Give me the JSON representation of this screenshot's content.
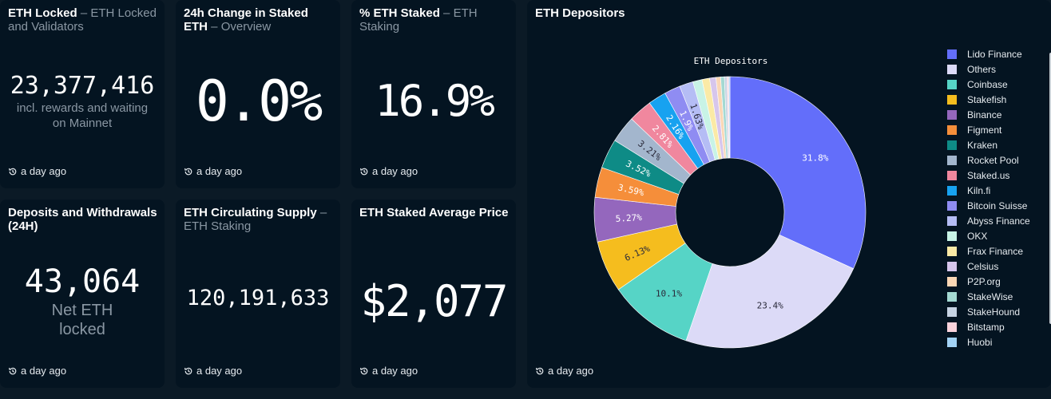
{
  "cards": {
    "eth_locked": {
      "title": "ETH Locked",
      "subtitle": "ETH Locked and Validators",
      "value": "23,377,416",
      "caption_line1": "incl. rewards and waiting",
      "caption_line2": "on Mainnet",
      "updated": "a day ago"
    },
    "change_24h": {
      "title": "24h Change in Staked ETH",
      "subtitle": "Overview",
      "value": "0.0%",
      "updated": "a day ago"
    },
    "pct_staked": {
      "title": "% ETH Staked",
      "subtitle": "ETH Staking",
      "value": "16.9%",
      "updated": "a day ago"
    },
    "deposits_withdrawals": {
      "title": "Deposits and Withdrawals (24H)",
      "value": "43,064",
      "caption_line1": "Net ETH",
      "caption_line2": "locked",
      "updated": "a day ago"
    },
    "circulating": {
      "title": "ETH Circulating Supply",
      "subtitle": "ETH Staking",
      "value": "120,191,633",
      "updated": "a day ago"
    },
    "avg_price": {
      "title": "ETH Staked Average Price",
      "value": "$2,077",
      "updated": "a day ago"
    },
    "depositors": {
      "title": "ETH Depositors",
      "updated": "a day ago"
    }
  },
  "separator": "–",
  "icons": {
    "updated": "history-clock-icon"
  },
  "chart_data": {
    "type": "pie",
    "title": "ETH Depositors",
    "hole": 0.4,
    "categories": [
      "Lido Finance",
      "Others",
      "Coinbase",
      "Stakefish",
      "Binance",
      "Figment",
      "Kraken",
      "Rocket Pool",
      "Staked.us",
      "Kiln.fi",
      "Bitcoin Suisse",
      "Abyss Finance",
      "OKX",
      "Frax Finance",
      "Celsius",
      "P2P.org",
      "StakeWise",
      "StakeHound",
      "Bitstamp",
      "Huobi"
    ],
    "values": [
      31.8,
      23.4,
      10.1,
      6.13,
      5.27,
      3.59,
      3.52,
      3.21,
      2.81,
      2.16,
      1.9,
      1.63,
      1.1,
      0.9,
      0.75,
      0.55,
      0.45,
      0.3,
      0.2,
      0.15
    ],
    "data_labels": [
      "31.8%",
      "23.4%",
      "10.1%",
      "6.13%",
      "5.27%",
      "3.59%",
      "3.52%",
      "3.21%",
      "2.81%",
      "2.16%",
      "1.9%",
      "1.63%",
      "",
      "",
      "",
      "",
      "",
      "",
      "",
      ""
    ],
    "colors": [
      "#636efa",
      "#dcdaf7",
      "#56d4c6",
      "#f5bd1e",
      "#9467bd",
      "#f58e3a",
      "#0e8b86",
      "#a3b6cd",
      "#f0879e",
      "#17a2f0",
      "#8f8cf2",
      "#b5bdf5",
      "#c8f3e6",
      "#fbeaa6",
      "#d7c6ec",
      "#fbd7b5",
      "#a4d9d2",
      "#c7d3e3",
      "#fbd3dc",
      "#a3d3f5"
    ],
    "legend_placement": "right"
  }
}
